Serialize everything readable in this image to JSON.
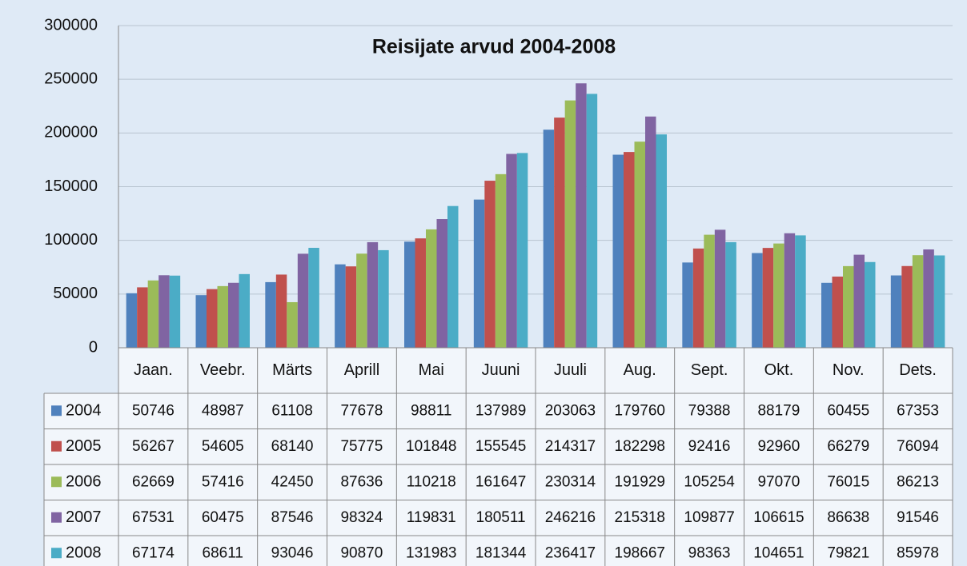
{
  "chart_data": {
    "type": "bar",
    "title": "Reisijate arvud 2004-2008",
    "categories": [
      "Jaan.",
      "Veebr.",
      "Märts",
      "Aprill",
      "Mai",
      "Juuni",
      "Juuli",
      "Aug.",
      "Sept.",
      "Okt.",
      "Nov.",
      "Dets."
    ],
    "series": [
      {
        "name": "2004",
        "color": "#4f81bd",
        "values": [
          50746,
          48987,
          61108,
          77678,
          98811,
          137989,
          203063,
          179760,
          79388,
          88179,
          60455,
          67353
        ]
      },
      {
        "name": "2005",
        "color": "#c0504d",
        "values": [
          56267,
          54605,
          68140,
          75775,
          101848,
          155545,
          214317,
          182298,
          92416,
          92960,
          66279,
          76094
        ]
      },
      {
        "name": "2006",
        "color": "#9bbb59",
        "values": [
          62669,
          57416,
          42450,
          87636,
          110218,
          161647,
          230314,
          191929,
          105254,
          97070,
          76015,
          86213
        ]
      },
      {
        "name": "2007",
        "color": "#8064a2",
        "values": [
          67531,
          60475,
          87546,
          98324,
          119831,
          180511,
          246216,
          215318,
          109877,
          106615,
          86638,
          91546
        ]
      },
      {
        "name": "2008",
        "color": "#4bacc6",
        "values": [
          67174,
          68611,
          93046,
          90870,
          131983,
          181344,
          236417,
          198667,
          98363,
          104651,
          79821,
          85978
        ]
      }
    ],
    "ylim": [
      0,
      300000
    ],
    "yticks": [
      0,
      50000,
      100000,
      150000,
      200000,
      250000,
      300000
    ],
    "grid": true
  }
}
